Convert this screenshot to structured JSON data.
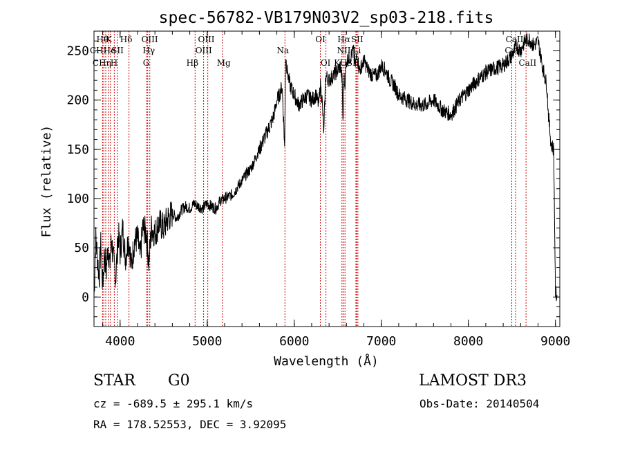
{
  "chart_data": {
    "type": "line",
    "title": "spec-56782-VB179N03V2_sp03-218.fits",
    "xlabel": "Wavelength (Å)",
    "ylabel": "Flux (relative)",
    "xlim": [
      3700,
      9050
    ],
    "ylim": [
      -30,
      270
    ],
    "xticks": [
      4000,
      5000,
      6000,
      7000,
      8000,
      9000
    ],
    "yticks": [
      0,
      50,
      100,
      150,
      200,
      250
    ],
    "x_minor_step": 200,
    "y_minor_step": 10,
    "series": [
      {
        "name": "spectrum",
        "x": [
          3700,
          3720,
          3740,
          3760,
          3780,
          3800,
          3820,
          3840,
          3860,
          3880,
          3900,
          3920,
          3950,
          3980,
          4000,
          4030,
          4060,
          4100,
          4130,
          4160,
          4200,
          4230,
          4260,
          4300,
          4330,
          4360,
          4400,
          4450,
          4500,
          4550,
          4600,
          4650,
          4700,
          4750,
          4800,
          4850,
          4900,
          4950,
          5000,
          5050,
          5100,
          5150,
          5200,
          5250,
          5300,
          5350,
          5400,
          5450,
          5500,
          5550,
          5600,
          5650,
          5700,
          5750,
          5780,
          5800,
          5830,
          5860,
          5880,
          5890,
          5900,
          5920,
          5950,
          6000,
          6050,
          6100,
          6150,
          6200,
          6250,
          6280,
          6300,
          6320,
          6340,
          6360,
          6400,
          6450,
          6500,
          6530,
          6550,
          6560,
          6570,
          6580,
          6600,
          6650,
          6680,
          6700,
          6720,
          6750,
          6800,
          6850,
          6900,
          6950,
          7000,
          7050,
          7100,
          7150,
          7200,
          7300,
          7400,
          7500,
          7600,
          7700,
          7800,
          7900,
          8000,
          8100,
          8200,
          8300,
          8400,
          8450,
          8500,
          8550,
          8600,
          8650,
          8700,
          8750,
          8800,
          8850,
          8900,
          8920,
          8950,
          8980,
          9000,
          9020
        ],
        "values": [
          0,
          60,
          40,
          20,
          55,
          10,
          45,
          25,
          55,
          30,
          60,
          40,
          20,
          65,
          45,
          70,
          40,
          60,
          30,
          55,
          60,
          40,
          70,
          65,
          35,
          70,
          65,
          75,
          70,
          80,
          85,
          80,
          88,
          92,
          90,
          95,
          92,
          90,
          95,
          92,
          90,
          98,
          100,
          102,
          105,
          112,
          118,
          125,
          130,
          140,
          150,
          160,
          170,
          180,
          190,
          200,
          205,
          215,
          175,
          150,
          245,
          230,
          215,
          205,
          195,
          200,
          205,
          200,
          205,
          195,
          215,
          200,
          165,
          225,
          220,
          225,
          230,
          235,
          220,
          175,
          225,
          215,
          240,
          245,
          250,
          235,
          245,
          230,
          240,
          230,
          225,
          225,
          235,
          230,
          220,
          215,
          205,
          200,
          195,
          195,
          200,
          190,
          185,
          200,
          210,
          220,
          228,
          232,
          235,
          240,
          245,
          255,
          250,
          260,
          262,
          255,
          260,
          235,
          215,
          185,
          155,
          150,
          5,
          0
        ]
      }
    ],
    "lines": [
      {
        "name": "Hθ",
        "x": 3798
      },
      {
        "name": "CaII H",
        "x": 3812
      },
      {
        "name": "Hη",
        "x": 3835
      },
      {
        "name": "CaII K",
        "x": 3869
      },
      {
        "name": "He",
        "x": 3889
      },
      {
        "name": "CaII H",
        "x": 3933
      },
      {
        "name": "SII",
        "x": 3968
      },
      {
        "name": "Hδ",
        "x": 4102
      },
      {
        "name": "G",
        "x": 4304
      },
      {
        "name": "OIII",
        "x": 4317
      },
      {
        "name": "Hγ",
        "x": 4341
      },
      {
        "name": "Hβ",
        "x": 4861
      },
      {
        "name": "OIII",
        "x": 4959
      },
      {
        "name": "OIII",
        "x": 5007
      },
      {
        "name": "Mg",
        "x": 5176
      },
      {
        "name": "Na",
        "x": 5893
      },
      {
        "name": "OI",
        "x": 6300
      },
      {
        "name": "OI",
        "x": 6364
      },
      {
        "name": "NII",
        "x": 6548
      },
      {
        "name": "Hα",
        "x": 6563
      },
      {
        "name": "NII",
        "x": 6583
      },
      {
        "name": "SII",
        "x": 6716
      },
      {
        "name": "SII",
        "x": 6731
      },
      {
        "name": "Li",
        "x": 6708
      },
      {
        "name": "CaII",
        "x": 8498
      },
      {
        "name": "CaII",
        "x": 8542
      },
      {
        "name": "CaII",
        "x": 8662
      }
    ],
    "line_labels": [
      {
        "text": "Hθ",
        "x": 3798,
        "row": 1
      },
      {
        "text": "K",
        "x": 3870,
        "row": 1
      },
      {
        "text": "Hδ",
        "x": 4070,
        "row": 1
      },
      {
        "text": "OIII",
        "x": 4340,
        "row": 1
      },
      {
        "text": "OIII",
        "x": 4990,
        "row": 1
      },
      {
        "text": "OI",
        "x": 6300,
        "row": 1
      },
      {
        "text": "Hα",
        "x": 6570,
        "row": 1
      },
      {
        "text": "SII",
        "x": 6722,
        "row": 1
      },
      {
        "text": "CaII",
        "x": 8530,
        "row": 1
      },
      {
        "text": "CHHe",
        "x": 3800,
        "row": 2
      },
      {
        "text": "SII",
        "x": 3970,
        "row": 2
      },
      {
        "text": "Hγ",
        "x": 4330,
        "row": 2
      },
      {
        "text": "OIII",
        "x": 4960,
        "row": 2
      },
      {
        "text": "Na",
        "x": 5870,
        "row": 2
      },
      {
        "text": "NII",
        "x": 6570,
        "row": 2
      },
      {
        "text": "Li",
        "x": 6720,
        "row": 2
      },
      {
        "text": "CaII",
        "x": 8520,
        "row": 2
      },
      {
        "text": "CHη",
        "x": 3790,
        "row": 3
      },
      {
        "text": "H",
        "x": 3930,
        "row": 3
      },
      {
        "text": "G",
        "x": 4300,
        "row": 3
      },
      {
        "text": "Hβ",
        "x": 4830,
        "row": 3
      },
      {
        "text": "Mg",
        "x": 5190,
        "row": 3
      },
      {
        "text": "OI",
        "x": 6360,
        "row": 3
      },
      {
        "text": "KUSII",
        "x": 6600,
        "row": 3
      },
      {
        "text": "CaII",
        "x": 8680,
        "row": 3
      }
    ],
    "colors": {
      "spectrum": "#000000",
      "lines": "#cc0000"
    }
  },
  "info": {
    "object_class": "STAR",
    "subclass": "G0",
    "survey": "LAMOST DR3",
    "cz": "cz = -689.5 ± 295.1 km/s",
    "obs_date": "Obs-Date: 20140504",
    "radec": "RA = 178.52553, DEC =    3.92095"
  }
}
